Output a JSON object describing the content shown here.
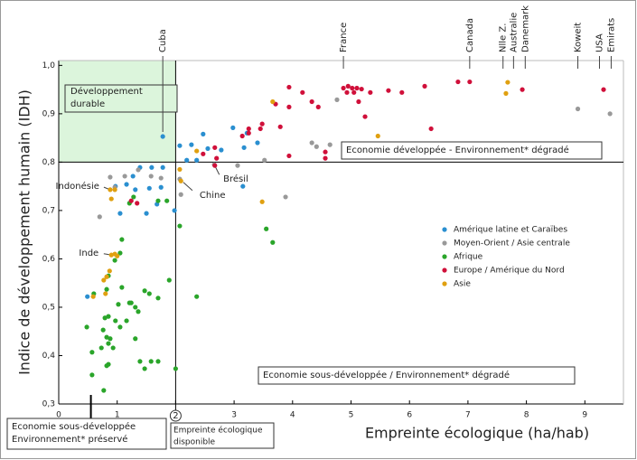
{
  "chart_data": {
    "type": "scatter",
    "x_label": "Empreinte écologique (ha/hab)",
    "y_label": "Indice de développement humain (IDH)",
    "xlim": [
      0,
      9.66
    ],
    "ylim": [
      0.3,
      1.01
    ],
    "xticks": [
      0,
      1,
      2,
      3,
      4,
      5,
      6,
      7,
      8,
      9
    ],
    "yticks": [
      {
        "value": 0.3,
        "label": "0,3"
      },
      {
        "value": 0.4,
        "label": "0,4"
      },
      {
        "value": 0.5,
        "label": "0,5"
      },
      {
        "value": 0.6,
        "label": "0,6"
      },
      {
        "value": 0.7,
        "label": "0,7"
      },
      {
        "value": 0.8,
        "label": "0,8"
      },
      {
        "value": 0.9,
        "label": "0,9"
      },
      {
        "value": 1.0,
        "label": "1,0"
      }
    ],
    "threshold_x": 2,
    "threshold_y": 0.8,
    "threshold_marker_x": 0.55,
    "zones": {
      "durable": "Développement durable",
      "developed": "Economie développée - Environnement* dégradé",
      "under_degraded": "Economie sous-développée / Environnement* dégradé",
      "under_preserved": [
        "Economie sous-développée",
        "Environnement* préservé"
      ],
      "available": [
        "Empreinte écologique",
        "disponible"
      ]
    },
    "top_annotations": [
      {
        "text": "Cuba",
        "x": 1.78,
        "y": 0.853
      },
      {
        "text": "France",
        "x": 4.87
      },
      {
        "text": "Canada",
        "x": 7.03
      },
      {
        "text": "Nlle Z.",
        "x": 7.6
      },
      {
        "text": "Australie",
        "x": 7.78
      },
      {
        "text": "Danemark",
        "x": 7.98
      },
      {
        "text": "Koweit",
        "x": 8.88
      },
      {
        "text": "USA",
        "x": 9.25
      },
      {
        "text": "Emirats",
        "x": 9.45
      }
    ],
    "inner_annotations": [
      {
        "text": "Brésil",
        "x": 2.66,
        "y": 0.795
      },
      {
        "text": "Chine",
        "x": 2.07,
        "y": 0.765
      },
      {
        "text": "Indonésie",
        "x": 0.88,
        "y": 0.743
      },
      {
        "text": "Inde",
        "x": 0.9,
        "y": 0.608
      }
    ],
    "series": [
      {
        "name": "Amérique latine et Caraïbes",
        "color": "#2a8fd0",
        "x": [
          1.78,
          2.07,
          2.27,
          2.47,
          2.19,
          2.36,
          2.55,
          2.78,
          2.98,
          3.17,
          3.22,
          3.4,
          3.15,
          1.78,
          1.59,
          1.39,
          1.27,
          1.16,
          1.75,
          1.55,
          1.31,
          1.5,
          0.97,
          1.05,
          0.49,
          1.98,
          1.68
        ],
        "values": [
          0.853,
          0.834,
          0.836,
          0.858,
          0.804,
          0.804,
          0.828,
          0.825,
          0.871,
          0.83,
          0.86,
          0.84,
          0.75,
          0.789,
          0.789,
          0.789,
          0.771,
          0.754,
          0.748,
          0.746,
          0.743,
          0.694,
          0.75,
          0.694,
          0.522,
          0.7,
          0.713
        ]
      },
      {
        "name": "Moyen-Orient / Asie centrale",
        "color": "#999999",
        "x": [
          8.88,
          9.43,
          4.33,
          4.41,
          4.64,
          4.76,
          3.88,
          3.52,
          3.06,
          2.66,
          2.09,
          2.07,
          1.58,
          1.36,
          1.13,
          0.88,
          0.7,
          1.75,
          0.96
        ],
        "values": [
          0.91,
          0.9,
          0.84,
          0.832,
          0.836,
          0.929,
          0.728,
          0.804,
          0.793,
          0.795,
          0.733,
          0.765,
          0.771,
          0.784,
          0.771,
          0.769,
          0.687,
          0.767,
          0.748
        ]
      },
      {
        "name": "Afrique",
        "color": "#2aa52a",
        "x": [
          2.36,
          2.0,
          2.07,
          3.55,
          3.66,
          1.89,
          1.7,
          1.55,
          1.47,
          1.36,
          1.24,
          1.16,
          1.08,
          1.02,
          0.97,
          0.85,
          0.79,
          0.76,
          0.82,
          0.85,
          0.73,
          0.82,
          0.77,
          0.57,
          0.48,
          0.57,
          0.6,
          0.82,
          0.85,
          1.08,
          1.05,
          0.96,
          1.31,
          1.39,
          1.58,
          1.7,
          1.47,
          0.85,
          1.21,
          0.93,
          0.88,
          1.21,
          1.28,
          1.7,
          1.85,
          1.05,
          1.31
        ],
        "values": [
          0.522,
          0.373,
          0.668,
          0.662,
          0.634,
          0.556,
          0.519,
          0.528,
          0.534,
          0.491,
          0.509,
          0.472,
          0.541,
          0.506,
          0.472,
          0.481,
          0.478,
          0.453,
          0.438,
          0.425,
          0.416,
          0.379,
          0.328,
          0.36,
          0.459,
          0.407,
          0.528,
          0.537,
          0.565,
          0.64,
          0.612,
          0.597,
          0.435,
          0.388,
          0.388,
          0.388,
          0.373,
          0.382,
          0.509,
          0.416,
          0.435,
          0.715,
          0.728,
          0.72,
          0.72,
          0.459,
          0.5
        ]
      },
      {
        "name": "Europe / Amérique du Nord",
        "color": "#d0103a",
        "x": [
          4.87,
          4.95,
          5.02,
          5.1,
          5.18,
          4.93,
          5.05,
          5.33,
          5.64,
          5.87,
          6.26,
          6.83,
          7.03,
          7.93,
          9.32,
          3.94,
          4.17,
          4.33,
          4.44,
          3.94,
          3.71,
          5.24,
          5.13,
          4.56,
          4.56,
          6.37,
          3.45,
          3.48,
          3.25,
          3.25,
          3.14,
          3.79,
          2.7,
          2.67,
          2.47,
          2.67,
          3.94,
          1.24,
          1.34
        ],
        "values": [
          0.953,
          0.957,
          0.953,
          0.953,
          0.951,
          0.944,
          0.944,
          0.944,
          0.948,
          0.944,
          0.957,
          0.966,
          0.966,
          0.95,
          0.95,
          0.955,
          0.944,
          0.925,
          0.914,
          0.914,
          0.92,
          0.894,
          0.925,
          0.821,
          0.808,
          0.869,
          0.869,
          0.879,
          0.869,
          0.86,
          0.854,
          0.873,
          0.808,
          0.793,
          0.817,
          0.83,
          0.813,
          0.72,
          0.715
        ]
      },
      {
        "name": "Asie",
        "color": "#e0a010",
        "x": [
          7.68,
          7.65,
          5.46,
          3.66,
          3.48,
          2.36,
          2.07,
          2.09,
          0.88,
          0.9,
          0.96,
          1.0,
          0.9,
          0.96,
          0.87,
          0.82,
          0.77,
          0.59,
          0.8
        ],
        "values": [
          0.965,
          0.942,
          0.854,
          0.925,
          0.718,
          0.823,
          0.785,
          0.761,
          0.743,
          0.724,
          0.743,
          0.606,
          0.608,
          0.61,
          0.575,
          0.563,
          0.556,
          0.522,
          0.528
        ]
      }
    ]
  }
}
